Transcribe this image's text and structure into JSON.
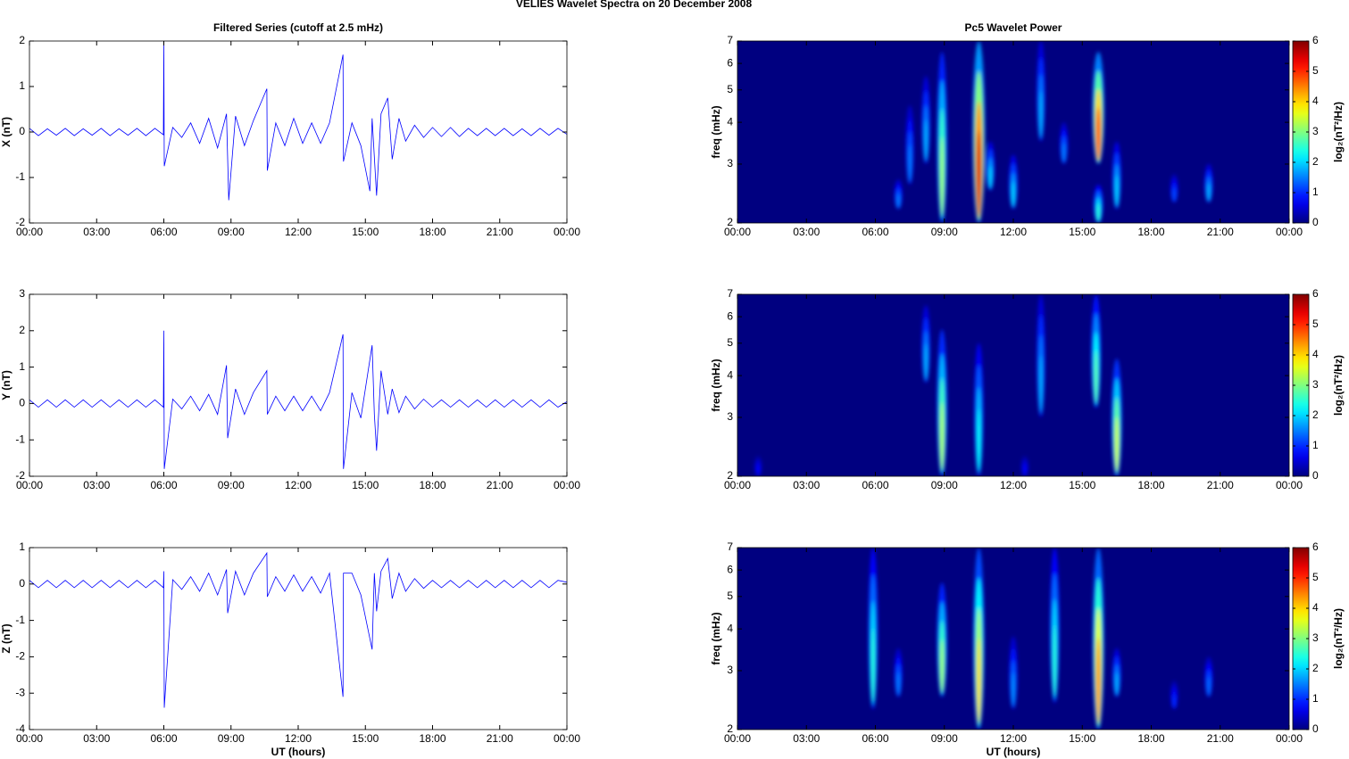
{
  "title": "VELIES Wavelet Spectra on 20 December  2008",
  "chart_data": [
    {
      "type": "line",
      "title": "Filtered Series (cutoff at 2.5 mHz)",
      "ylabel": "X (nT)",
      "xlim": [
        0,
        24
      ],
      "ylim": [
        -2,
        2
      ],
      "yticks": [
        -2,
        -1,
        0,
        1,
        2
      ],
      "xticks": [
        {
          "value": 0,
          "label": "00:00"
        },
        {
          "value": 3,
          "label": "03:00"
        },
        {
          "value": 6,
          "label": "06:00"
        },
        {
          "value": 9,
          "label": "09:00"
        },
        {
          "value": 12,
          "label": "12:00"
        },
        {
          "value": 15,
          "label": "15:00"
        },
        {
          "value": 18,
          "label": "18:00"
        },
        {
          "value": 21,
          "label": "21:00"
        },
        {
          "value": 24,
          "label": "00:00"
        }
      ],
      "x": [
        0,
        0.4,
        0.8,
        1.2,
        1.6,
        2,
        2.4,
        2.8,
        3.2,
        3.6,
        4,
        4.4,
        4.8,
        5.2,
        5.6,
        5.98,
        6,
        6.02,
        6.4,
        6.8,
        7.2,
        7.6,
        8,
        8.4,
        8.8,
        8.9,
        9.2,
        9.6,
        10,
        10.6,
        10.62,
        11,
        11.4,
        11.8,
        12.2,
        12.6,
        13,
        13.4,
        14,
        14.02,
        14.4,
        14.8,
        15.2,
        15.3,
        15.5,
        15.7,
        16,
        16.2,
        16.5,
        16.8,
        17.2,
        17.6,
        18,
        18.4,
        18.8,
        19.2,
        19.6,
        20,
        20.4,
        20.8,
        21.2,
        21.6,
        22,
        22.4,
        22.8,
        23.2,
        23.6,
        24
      ],
      "series": [
        {
          "color": "#0000ff",
          "values": [
            0.08,
            -0.08,
            0.07,
            -0.07,
            0.08,
            -0.08,
            0.07,
            -0.07,
            0.08,
            -0.08,
            0.07,
            -0.07,
            0.08,
            -0.08,
            0.08,
            -0.06,
            1.95,
            -0.75,
            0.1,
            -0.12,
            0.2,
            -0.25,
            0.3,
            -0.35,
            0.4,
            -1.5,
            0.35,
            -0.3,
            0.25,
            0.95,
            -0.85,
            0.2,
            -0.3,
            0.3,
            -0.25,
            0.2,
            -0.25,
            0.2,
            1.7,
            -0.65,
            0.2,
            -0.3,
            -1.3,
            0.3,
            -1.4,
            0.4,
            0.75,
            -0.6,
            0.3,
            -0.2,
            0.15,
            -0.12,
            0.1,
            -0.1,
            0.1,
            -0.1,
            0.08,
            -0.08,
            0.08,
            -0.08,
            0.08,
            -0.08,
            0.07,
            -0.08,
            0.08,
            -0.07,
            0.08,
            -0.05
          ]
        }
      ]
    },
    {
      "type": "line",
      "ylabel": "Y (nT)",
      "xlim": [
        0,
        24
      ],
      "ylim": [
        -2,
        3
      ],
      "yticks": [
        -2,
        -1,
        0,
        1,
        2,
        3
      ],
      "xticks": [
        {
          "value": 0,
          "label": "00:00"
        },
        {
          "value": 3,
          "label": "03:00"
        },
        {
          "value": 6,
          "label": "06:00"
        },
        {
          "value": 9,
          "label": "09:00"
        },
        {
          "value": 12,
          "label": "12:00"
        },
        {
          "value": 15,
          "label": "15:00"
        },
        {
          "value": 18,
          "label": "18:00"
        },
        {
          "value": 21,
          "label": "21:00"
        },
        {
          "value": 24,
          "label": "00:00"
        }
      ],
      "x": [
        0,
        0.4,
        0.8,
        1.2,
        1.6,
        2,
        2.4,
        2.8,
        3.2,
        3.6,
        4,
        4.4,
        4.8,
        5.2,
        5.6,
        5.98,
        6,
        6.02,
        6.4,
        6.8,
        7.2,
        7.6,
        8,
        8.4,
        8.8,
        8.85,
        9.2,
        9.6,
        10,
        10.6,
        10.62,
        11,
        11.4,
        11.8,
        12.2,
        12.6,
        13,
        13.4,
        14,
        14.02,
        14.4,
        14.8,
        15.3,
        15.4,
        15.5,
        15.7,
        16,
        16.2,
        16.5,
        16.8,
        17.2,
        17.6,
        18,
        18.4,
        18.8,
        19.2,
        19.6,
        20,
        20.4,
        20.8,
        21.2,
        21.6,
        22,
        22.4,
        22.8,
        23.2,
        23.6,
        24
      ],
      "series": [
        {
          "color": "#0000ff",
          "values": [
            0.1,
            -0.1,
            0.1,
            -0.1,
            0.1,
            -0.1,
            0.1,
            -0.1,
            0.1,
            -0.1,
            0.1,
            -0.1,
            0.1,
            -0.1,
            0.1,
            -0.1,
            2.0,
            -1.8,
            0.12,
            -0.15,
            0.2,
            -0.2,
            0.25,
            -0.3,
            1.05,
            -0.95,
            0.4,
            -0.3,
            0.3,
            0.9,
            -0.3,
            0.2,
            -0.2,
            0.2,
            -0.2,
            0.2,
            -0.2,
            0.3,
            1.9,
            -1.8,
            0.3,
            -0.4,
            1.6,
            -0.3,
            -1.3,
            0.9,
            -0.3,
            0.4,
            -0.25,
            0.2,
            -0.15,
            0.12,
            -0.1,
            0.1,
            -0.1,
            0.1,
            -0.1,
            0.1,
            -0.1,
            0.1,
            -0.1,
            0.1,
            -0.1,
            0.1,
            -0.1,
            0.1,
            -0.1,
            0.05
          ]
        }
      ]
    },
    {
      "type": "line",
      "ylabel": "Z (nT)",
      "xlabel": "UT (hours)",
      "xlim": [
        0,
        24
      ],
      "ylim": [
        -4,
        1
      ],
      "yticks": [
        -4,
        -3,
        -2,
        -1,
        0,
        1
      ],
      "xticks": [
        {
          "value": 0,
          "label": "00:00"
        },
        {
          "value": 3,
          "label": "03:00"
        },
        {
          "value": 6,
          "label": "06:00"
        },
        {
          "value": 9,
          "label": "09:00"
        },
        {
          "value": 12,
          "label": "12:00"
        },
        {
          "value": 15,
          "label": "15:00"
        },
        {
          "value": 18,
          "label": "18:00"
        },
        {
          "value": 21,
          "label": "21:00"
        },
        {
          "value": 24,
          "label": "00:00"
        }
      ],
      "x": [
        0,
        0.4,
        0.8,
        1.2,
        1.6,
        2,
        2.4,
        2.8,
        3.2,
        3.6,
        4,
        4.4,
        4.8,
        5.2,
        5.6,
        5.98,
        6,
        6.02,
        6.4,
        6.8,
        7.2,
        7.6,
        8,
        8.4,
        8.8,
        8.85,
        9.2,
        9.6,
        10,
        10.6,
        10.62,
        11,
        11.4,
        11.8,
        12.2,
        12.6,
        13,
        13.4,
        14,
        14.02,
        14.4,
        14.8,
        15.3,
        15.4,
        15.5,
        15.7,
        16,
        16.2,
        16.5,
        16.8,
        17.2,
        17.6,
        18,
        18.4,
        18.8,
        19.2,
        19.6,
        20,
        20.4,
        20.8,
        21.2,
        21.6,
        22,
        22.4,
        22.8,
        23.2,
        23.6,
        24
      ],
      "series": [
        {
          "color": "#0000ff",
          "values": [
            0.1,
            -0.1,
            0.1,
            -0.1,
            0.1,
            -0.1,
            0.1,
            -0.1,
            0.1,
            -0.1,
            0.1,
            -0.1,
            0.1,
            -0.1,
            0.1,
            -0.1,
            0.35,
            -3.4,
            0.12,
            -0.15,
            0.2,
            -0.2,
            0.3,
            -0.3,
            0.4,
            -0.8,
            0.35,
            -0.3,
            0.3,
            0.85,
            -0.35,
            0.2,
            -0.2,
            0.25,
            -0.2,
            0.2,
            -0.25,
            0.3,
            -3.1,
            0.3,
            0.3,
            -0.3,
            -1.8,
            0.3,
            -0.75,
            0.35,
            0.7,
            -0.4,
            0.3,
            -0.2,
            0.15,
            -0.12,
            0.1,
            -0.1,
            0.1,
            -0.1,
            0.1,
            -0.1,
            0.1,
            -0.1,
            0.1,
            -0.1,
            0.1,
            -0.1,
            0.1,
            -0.1,
            0.1,
            0.05
          ]
        }
      ]
    },
    {
      "type": "heatmap",
      "title": "Pc5 Wavelet Power",
      "ylabel": "freq (mHz)",
      "log_scale": true,
      "xlim": [
        0,
        24
      ],
      "ylim": [
        2,
        7
      ],
      "yticks": [
        2,
        3,
        4,
        5,
        6,
        7
      ],
      "xticks": [
        {
          "value": 0,
          "label": "00:00"
        },
        {
          "value": 3,
          "label": "03:00"
        },
        {
          "value": 6,
          "label": "06:00"
        },
        {
          "value": 9,
          "label": "09:00"
        },
        {
          "value": 12,
          "label": "12:00"
        },
        {
          "value": 15,
          "label": "15:00"
        },
        {
          "value": 18,
          "label": "18:00"
        },
        {
          "value": 21,
          "label": "21:00"
        },
        {
          "value": 24,
          "label": "00:00"
        }
      ],
      "clim": [
        0,
        6
      ],
      "cticks": [
        0,
        1,
        2,
        3,
        4,
        5,
        6
      ],
      "colorbar_label": "log₂(nT²/Hz)",
      "x": [
        7.0,
        7.5,
        8.2,
        8.9,
        10.5,
        11.0,
        12.0,
        13.2,
        14.2,
        15.7,
        15.7,
        16.5,
        19.0,
        20.5
      ],
      "ylow": [
        2.2,
        2.6,
        3.0,
        2.0,
        2.0,
        2.5,
        2.2,
        3.5,
        3.0,
        3.0,
        2.0,
        2.2,
        2.3,
        2.3
      ],
      "yhigh": [
        2.7,
        4.5,
        5.5,
        6.5,
        7,
        3.5,
        3.2,
        7,
        4,
        6.5,
        2.6,
        3.5,
        2.8,
        3.0
      ],
      "values": [
        1.5,
        1.5,
        1.8,
        3.2,
        5.5,
        2,
        2,
        1.8,
        1.5,
        5,
        2.5,
        2,
        1.2,
        1.8
      ]
    },
    {
      "type": "heatmap",
      "ylabel": "freq (mHz)",
      "log_scale": true,
      "xlim": [
        0,
        24
      ],
      "ylim": [
        2,
        7
      ],
      "yticks": [
        2,
        3,
        4,
        5,
        6,
        7
      ],
      "xticks": [
        {
          "value": 0,
          "label": "00:00"
        },
        {
          "value": 3,
          "label": "03:00"
        },
        {
          "value": 6,
          "label": "06:00"
        },
        {
          "value": 9,
          "label": "09:00"
        },
        {
          "value": 12,
          "label": "12:00"
        },
        {
          "value": 15,
          "label": "15:00"
        },
        {
          "value": 18,
          "label": "18:00"
        },
        {
          "value": 21,
          "label": "21:00"
        },
        {
          "value": 24,
          "label": "00:00"
        }
      ],
      "clim": [
        0,
        6
      ],
      "cticks": [
        0,
        1,
        2,
        3,
        4,
        5,
        6
      ],
      "colorbar_label": "log₂(nT²/Hz)",
      "x": [
        8.2,
        8.9,
        10.5,
        13.2,
        15.6,
        16.5,
        0.9,
        12.5
      ],
      "ylow": [
        3.8,
        2.0,
        2.0,
        3.0,
        3.2,
        2.0,
        2.0,
        2.0
      ],
      "yhigh": [
        6.5,
        5.5,
        5,
        7,
        7,
        4.5,
        2.3,
        2.3
      ],
      "values": [
        1.8,
        3.3,
        2.3,
        1.8,
        2.8,
        3.5,
        0.8,
        0.8
      ]
    },
    {
      "type": "heatmap",
      "ylabel": "freq (mHz)",
      "xlabel": "UT (hours)",
      "log_scale": true,
      "xlim": [
        0,
        24
      ],
      "ylim": [
        2,
        7
      ],
      "yticks": [
        2,
        3,
        4,
        5,
        6,
        7
      ],
      "xticks": [
        {
          "value": 0,
          "label": "00:00"
        },
        {
          "value": 3,
          "label": "03:00"
        },
        {
          "value": 6,
          "label": "06:00"
        },
        {
          "value": 9,
          "label": "09:00"
        },
        {
          "value": 12,
          "label": "12:00"
        },
        {
          "value": 15,
          "label": "15:00"
        },
        {
          "value": 18,
          "label": "18:00"
        },
        {
          "value": 21,
          "label": "21:00"
        },
        {
          "value": 24,
          "label": "00:00"
        }
      ],
      "clim": [
        0,
        6
      ],
      "cticks": [
        0,
        1,
        2,
        3,
        4,
        5,
        6
      ],
      "colorbar_label": "log₂(nT²/Hz)",
      "x": [
        5.9,
        7.0,
        8.9,
        10.5,
        12.0,
        13.8,
        15.7,
        16.5,
        19.0,
        20.5
      ],
      "ylow": [
        2.3,
        2.5,
        2.5,
        2.0,
        2.3,
        2.4,
        2.0,
        2.5,
        2.3,
        2.5
      ],
      "yhigh": [
        7,
        3.5,
        5.5,
        7,
        3.8,
        7,
        7,
        3.5,
        2.8,
        3.3
      ],
      "values": [
        2.5,
        1.5,
        3.2,
        4.0,
        1.6,
        2.5,
        4.5,
        1.8,
        1.0,
        1.4
      ]
    }
  ]
}
